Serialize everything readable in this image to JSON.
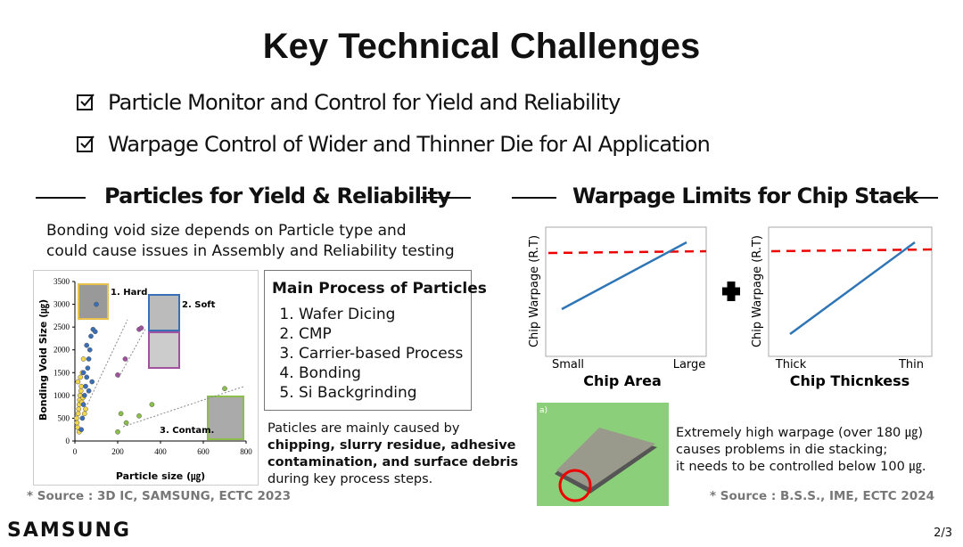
{
  "title": "Key Technical Challenges",
  "bullets": [
    "Particle Monitor and Control for Yield and Reliability",
    "Warpage Control of Wider and Thinner Die for AI Application"
  ],
  "left": {
    "heading": "Particles for Yield & Reliability",
    "intro": [
      "Bonding void size depends on Particle type and",
      "could cause issues in Assembly and Reliability testing"
    ],
    "process_box": {
      "title": "Main Process of Particles",
      "items": [
        "Wafer Dicing",
        "CMP",
        "Carrier-based Process",
        "Bonding",
        "Si Backgrinding"
      ]
    },
    "note": {
      "lead": "Paticles are mainly caused by",
      "bold": [
        "chipping, slurry residue, adhesive",
        "contamination, and surface debris"
      ],
      "tail": "during key process steps."
    },
    "source": "* Source : 3D IC,  SAMSUNG, ECTC 2023"
  },
  "chart_data": {
    "type": "scatter",
    "xlabel": "Particle size (㎍)",
    "ylabel": "Bonding Void Size (㎍)",
    "xlim": [
      0,
      800
    ],
    "xticks": [
      0,
      200,
      400,
      600,
      800
    ],
    "ylim": [
      0,
      3500
    ],
    "yticks": [
      0,
      500,
      1000,
      1500,
      2000,
      2500,
      3000,
      3500
    ],
    "annotations": [
      "1. Hard",
      "2. Soft",
      "3. Contam."
    ],
    "series": [
      {
        "color": "#f2d64b",
        "x": [
          10,
          15,
          20,
          25,
          30,
          12,
          18,
          22,
          28,
          35,
          40,
          8,
          14,
          24,
          32,
          45,
          20,
          26,
          38,
          50
        ],
        "values": [
          400,
          600,
          800,
          1000,
          1200,
          300,
          700,
          900,
          1100,
          1500,
          1800,
          500,
          1300,
          1000,
          850,
          600,
          200,
          1400,
          950,
          700
        ]
      },
      {
        "color": "#3a6fb5",
        "x": [
          30,
          35,
          40,
          45,
          50,
          55,
          60,
          65,
          70,
          75,
          80,
          85,
          95,
          100,
          40,
          55,
          65
        ],
        "values": [
          250,
          500,
          800,
          1000,
          1200,
          1400,
          1600,
          1800,
          2000,
          2300,
          1300,
          2450,
          2400,
          3000,
          1500,
          2100,
          1100
        ]
      },
      {
        "color": "#a0529f",
        "x": [
          200,
          235,
          300,
          310
        ],
        "values": [
          1450,
          1800,
          2450,
          2480
        ]
      },
      {
        "color": "#8bbf4a",
        "x": [
          200,
          215,
          240,
          300,
          360,
          700
        ],
        "values": [
          200,
          600,
          400,
          550,
          800,
          1150
        ]
      }
    ]
  },
  "right": {
    "heading": "Warpage Limits for Chip Stack",
    "charts": [
      {
        "ylabel": "Chip Warpage (R.T)",
        "x_start": "Small",
        "x_end": "Large",
        "xlabel": "Chip Area"
      },
      {
        "ylabel": "Chip Warpage (R.T)",
        "x_start": "Thick",
        "x_end": "Thin",
        "xlabel": "Chip Thicnkess"
      }
    ],
    "image_tag": "a)",
    "caption": [
      "Extremely high warpage (over 180 ㎍)",
      "causes problems in die stacking;",
      " it needs to be controlled below 100 ㎍."
    ],
    "source": "* Source : B.S.S., IME, ECTC 2024"
  },
  "footer": {
    "logo": "SAMSUNG",
    "page": "2/3"
  }
}
